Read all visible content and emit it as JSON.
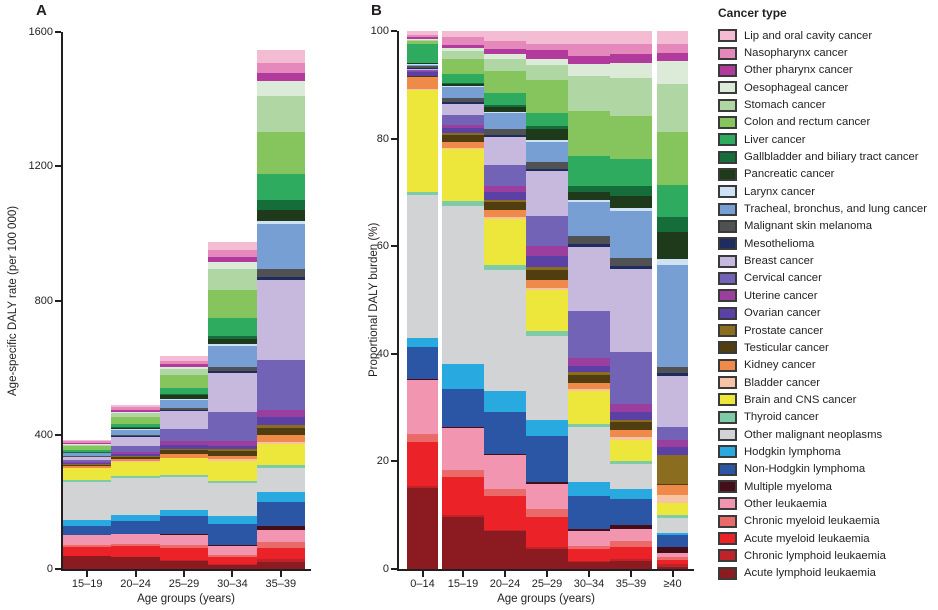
{
  "legend": {
    "title": "Cancer type",
    "items": [
      {
        "label": "Lip and oral cavity cancer",
        "color": "#f4bcd3"
      },
      {
        "label": "Nasopharynx cancer",
        "color": "#e589bd"
      },
      {
        "label": "Other pharynx cancer",
        "color": "#b13a9c"
      },
      {
        "label": "Oesophageal cancer",
        "color": "#dcead8"
      },
      {
        "label": "Stomach cancer",
        "color": "#b0d6a4"
      },
      {
        "label": "Colon and rectum cancer",
        "color": "#86c55e"
      },
      {
        "label": "Liver cancer",
        "color": "#2fab5f"
      },
      {
        "label": "Gallbladder and biliary tract cancer",
        "color": "#156e39"
      },
      {
        "label": "Pancreatic cancer",
        "color": "#1e3a1b"
      },
      {
        "label": "Larynx cancer",
        "color": "#cfe2f3"
      },
      {
        "label": "Tracheal, bronchus, and lung cancer",
        "color": "#779fd4"
      },
      {
        "label": "Malignant skin melanoma",
        "color": "#505153"
      },
      {
        "label": "Mesothelioma",
        "color": "#1e2d5e"
      },
      {
        "label": "Breast cancer",
        "color": "#c7b9de"
      },
      {
        "label": "Cervical cancer",
        "color": "#7263b6"
      },
      {
        "label": "Uterine cancer",
        "color": "#9a3f9e"
      },
      {
        "label": "Ovarian cancer",
        "color": "#5b40a6"
      },
      {
        "label": "Prostate cancer",
        "color": "#8a6d1f"
      },
      {
        "label": "Testicular cancer",
        "color": "#503e10"
      },
      {
        "label": "Kidney cancer",
        "color": "#f08a4b"
      },
      {
        "label": "Bladder cancer",
        "color": "#f6c4a4"
      },
      {
        "label": "Brain and CNS cancer",
        "color": "#ece73a"
      },
      {
        "label": "Thyroid cancer",
        "color": "#7ecbaa"
      },
      {
        "label": "Other malignant neoplasms",
        "color": "#d2d3d5"
      },
      {
        "label": "Hodgkin lymphoma",
        "color": "#28a9e0"
      },
      {
        "label": "Non-Hodgkin lymphoma",
        "color": "#2b55a5"
      },
      {
        "label": "Multiple myeloma",
        "color": "#450d18"
      },
      {
        "label": "Other leukaemia",
        "color": "#f295b0"
      },
      {
        "label": "Chronic myeloid leukaemia",
        "color": "#ea6a69"
      },
      {
        "label": "Acute myeloid leukaemia",
        "color": "#eb2227"
      },
      {
        "label": "Chronic lymphoid leukaemia",
        "color": "#c0222a"
      },
      {
        "label": "Acute lymphoid leukaemia",
        "color": "#8c1b21"
      }
    ]
  },
  "chart_data": [
    {
      "type": "bar",
      "stacked": true,
      "panel_label": "A",
      "ylabel": "Age-specific DALY rate (per 100 000)",
      "xlabel": "Age groups (years)",
      "categories": [
        "15–19",
        "20–24",
        "25–29",
        "30–34",
        "35–39"
      ],
      "ylim": [
        0,
        1600
      ],
      "yticks": [
        0,
        400,
        800,
        1200,
        1600
      ],
      "grid": false,
      "totals_daly_per_100000": [
        385,
        490,
        635,
        975,
        1545
      ],
      "composition_note": "Segment composition of each bar is proportional to the matching age-group percentages in panel B (columns 15–19 to 35–39)."
    },
    {
      "type": "bar",
      "stacked": true,
      "panel_label": "B",
      "ylabel": "Proportional DALY burden (%)",
      "xlabel": "Age groups (years)",
      "categories": [
        "0–14",
        "15–19",
        "20–24",
        "25–29",
        "30–34",
        "35–39",
        "≥40"
      ],
      "ylim": [
        0,
        100
      ],
      "yticks": [
        0,
        20,
        40,
        60,
        80,
        100
      ],
      "grid": false,
      "unit": "%",
      "series": [
        {
          "name": "Lip and oral cavity cancer",
          "values": [
            0.8,
            1.2,
            1.8,
            2.4,
            2.5,
            2.4,
            2.5
          ]
        },
        {
          "name": "Nasopharynx cancer",
          "values": [
            0.4,
            1.4,
            1.5,
            1.2,
            2.2,
            1.9,
            1.6
          ]
        },
        {
          "name": "Other pharynx cancer",
          "values": [
            0.3,
            0.5,
            1.0,
            1.6,
            1.5,
            1.6,
            1.5
          ]
        },
        {
          "name": "Oesophageal cancer",
          "values": [
            0.1,
            0.6,
            0.9,
            1.2,
            2.2,
            2.8,
            4.3
          ]
        },
        {
          "name": "Stomach cancer",
          "values": [
            0.3,
            1.5,
            2.2,
            2.8,
            6.5,
            7.1,
            8.8
          ]
        },
        {
          "name": "Colon and rectum cancer",
          "values": [
            0.5,
            2.8,
            4.2,
            6.0,
            8.4,
            8.0,
            9.9
          ]
        },
        {
          "name": "Liver cancer",
          "values": [
            3.5,
            1.6,
            2.2,
            2.5,
            5.6,
            5.0,
            5.9
          ]
        },
        {
          "name": "Gallbladder and biliary tract cancer",
          "values": [
            0.1,
            0.3,
            0.4,
            0.6,
            1.0,
            1.9,
            2.8
          ]
        },
        {
          "name": "Pancreatic cancer",
          "values": [
            0.2,
            0.4,
            0.8,
            1.9,
            1.5,
            2.2,
            5.0
          ]
        },
        {
          "name": "Larynx cancer",
          "values": [
            0.1,
            0.2,
            0.3,
            0.5,
            0.5,
            0.6,
            1.2
          ]
        },
        {
          "name": "Tracheal, bronchus, and lung cancer",
          "values": [
            0.3,
            2.0,
            3.0,
            3.7,
            6.3,
            8.7,
            19.0
          ]
        },
        {
          "name": "Malignant skin melanoma",
          "values": [
            0.2,
            0.8,
            1.0,
            1.2,
            1.5,
            1.5,
            1.0
          ]
        },
        {
          "name": "Mesothelioma",
          "values": [
            0.3,
            0.3,
            0.4,
            0.4,
            0.5,
            0.5,
            0.6
          ]
        },
        {
          "name": "Breast cancer",
          "values": [
            0.1,
            2.0,
            5.3,
            8.4,
            12.0,
            15.4,
            9.6
          ]
        },
        {
          "name": "Cervical cancer",
          "values": [
            0.2,
            1.9,
            3.8,
            5.6,
            8.7,
            9.6,
            2.4
          ]
        },
        {
          "name": "Uterine cancer",
          "values": [
            0.3,
            0.5,
            1.2,
            1.9,
            1.5,
            1.5,
            1.3
          ]
        },
        {
          "name": "Ovarian cancer",
          "values": [
            0.6,
            1.0,
            1.4,
            1.9,
            1.0,
            1.5,
            1.5
          ]
        },
        {
          "name": "Prostate cancer",
          "values": [
            0.1,
            0.4,
            0.5,
            0.6,
            0.7,
            0.5,
            5.3
          ]
        },
        {
          "name": "Testicular cancer",
          "values": [
            0.2,
            1.2,
            1.4,
            1.9,
            1.5,
            1.5,
            0.2
          ]
        },
        {
          "name": "Kidney cancer",
          "values": [
            2.3,
            1.2,
            1.3,
            1.5,
            1.0,
            1.2,
            1.9
          ]
        },
        {
          "name": "Bladder cancer",
          "values": [
            0.1,
            0.2,
            0.3,
            0.4,
            0.5,
            0.5,
            1.5
          ]
        },
        {
          "name": "Brain and CNS cancer",
          "values": [
            19.0,
            9.6,
            8.6,
            7.6,
            6.0,
            4.0,
            2.2
          ]
        },
        {
          "name": "Thyroid cancer",
          "values": [
            0.5,
            0.9,
            1.0,
            1.0,
            0.7,
            0.6,
            0.6
          ]
        },
        {
          "name": "Other malignant neoplasms",
          "values": [
            26.6,
            29.5,
            22.5,
            15.5,
            10.2,
            4.5,
            2.8
          ]
        },
        {
          "name": "Hodgkin lymphoma",
          "values": [
            1.7,
            4.6,
            3.8,
            3.1,
            2.5,
            2.0,
            0.3
          ]
        },
        {
          "name": "Non-Hodgkin lymphoma",
          "values": [
            6.0,
            7.1,
            7.8,
            8.4,
            6.2,
            4.7,
            2.2
          ]
        },
        {
          "name": "Multiple myeloma",
          "values": [
            0.1,
            0.2,
            0.3,
            0.5,
            0.4,
            0.8,
            1.2
          ]
        },
        {
          "name": "Other leukaemia",
          "values": [
            10.0,
            7.8,
            6.2,
            4.6,
            2.8,
            2.2,
            0.7
          ]
        },
        {
          "name": "Chronic myeloid leukaemia",
          "values": [
            1.5,
            1.2,
            1.3,
            1.5,
            0.6,
            1.2,
            0.6
          ]
        },
        {
          "name": "Acute myeloid leukaemia",
          "values": [
            8.3,
            7.1,
            6.3,
            5.6,
            2.2,
            2.2,
            0.8
          ]
        },
        {
          "name": "Chronic lymphoid leukaemia",
          "values": [
            0.3,
            0.3,
            0.3,
            0.3,
            0.2,
            0.4,
            0.4
          ]
        },
        {
          "name": "Acute lymphoid leukaemia",
          "values": [
            15.0,
            9.7,
            7.0,
            3.7,
            1.2,
            1.4,
            0.4
          ]
        }
      ]
    }
  ]
}
